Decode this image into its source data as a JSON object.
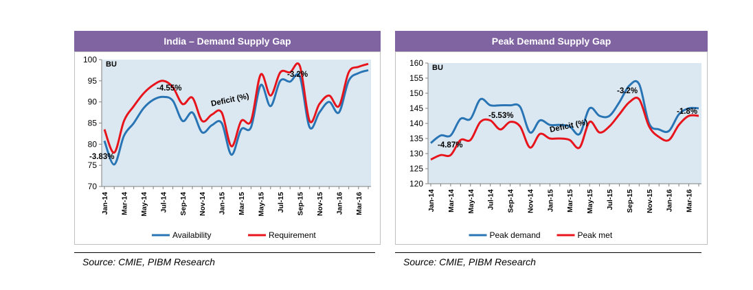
{
  "source_text": "Source: CMIE, PIBM Research",
  "colors": {
    "header_bg": "#8064a2",
    "plot_bg": "#dbe8f1",
    "blue": "#2874b4",
    "red": "#e8141c"
  },
  "chart_data": [
    {
      "type": "line",
      "title": "India – Demand Supply Gap",
      "ylabel": "BU",
      "ylim": [
        70,
        100
      ],
      "yticks": [
        70,
        75,
        80,
        85,
        90,
        95,
        100
      ],
      "x_tick_labels": [
        "Jan-14",
        "Mar-14",
        "May-14",
        "Jul-14",
        "Sep-14",
        "Nov-14",
        "Jan-15",
        "Mar-15",
        "May-15",
        "Jul-15",
        "Sep-15",
        "Nov-15",
        "Jan-16",
        "Mar-16"
      ],
      "x": [
        "Jan-14",
        "Feb-14",
        "Mar-14",
        "Apr-14",
        "May-14",
        "Jun-14",
        "Jul-14",
        "Aug-14",
        "Sep-14",
        "Oct-14",
        "Nov-14",
        "Dec-14",
        "Jan-15",
        "Feb-15",
        "Mar-15",
        "Apr-15",
        "May-15",
        "Jun-15",
        "Jul-15",
        "Aug-15",
        "Sep-15",
        "Oct-15",
        "Nov-15",
        "Dec-15",
        "Jan-16",
        "Feb-16",
        "Mar-16",
        "Apr-16"
      ],
      "series": [
        {
          "name": "Availability",
          "color": "#2874b4",
          "values": [
            80.8,
            75.2,
            82.0,
            85.0,
            88.5,
            90.5,
            91.2,
            90.3,
            85.5,
            87.5,
            82.8,
            84.5,
            85.0,
            77.5,
            83.5,
            84.0,
            94.0,
            89.0,
            95.0,
            94.8,
            96.0,
            84.0,
            87.5,
            90.0,
            87.5,
            95.0,
            96.8,
            97.5
          ]
        },
        {
          "name": "Requirement",
          "color": "#e8141c",
          "values": [
            83.5,
            78.0,
            85.5,
            89.0,
            92.0,
            94.0,
            95.0,
            93.5,
            89.5,
            91.0,
            85.5,
            87.0,
            87.5,
            79.5,
            85.5,
            85.5,
            96.5,
            91.5,
            97.0,
            97.0,
            98.5,
            85.5,
            89.5,
            91.5,
            89.0,
            97.0,
            98.3,
            99.0
          ]
        }
      ],
      "annotations": [
        "-3.83%",
        "-4.55%",
        "Deficit (%)",
        "-3.2%"
      ],
      "legend_position": "bottom"
    },
    {
      "type": "line",
      "title": "Peak Demand Supply Gap",
      "ylabel": "BU",
      "ylim": [
        120,
        160
      ],
      "yticks": [
        120,
        125,
        130,
        135,
        140,
        145,
        150,
        155,
        160
      ],
      "x_tick_labels": [
        "Jan-14",
        "Mar-14",
        "May-14",
        "Jul-14",
        "Sep-14",
        "Nov-14",
        "Jan-15",
        "Mar-15",
        "May-15",
        "Jul-15",
        "Sep-15",
        "Nov-15",
        "Jan-16",
        "Mar-16"
      ],
      "x": [
        "Jan-14",
        "Feb-14",
        "Mar-14",
        "Apr-14",
        "May-14",
        "Jun-14",
        "Jul-14",
        "Aug-14",
        "Sep-14",
        "Oct-14",
        "Nov-14",
        "Dec-14",
        "Jan-15",
        "Feb-15",
        "Mar-15",
        "Apr-15",
        "May-15",
        "Jun-15",
        "Jul-15",
        "Aug-15",
        "Sep-15",
        "Oct-15",
        "Nov-15",
        "Dec-15",
        "Jan-16",
        "Feb-16",
        "Mar-16",
        "Apr-16"
      ],
      "series": [
        {
          "name": "Peak demand",
          "color": "#2874b4",
          "values": [
            133.5,
            136.0,
            136.0,
            141.5,
            141.5,
            148.0,
            146.0,
            146.0,
            146.0,
            145.5,
            137.0,
            141.0,
            139.5,
            139.5,
            139.0,
            136.5,
            145.0,
            142.5,
            142.5,
            147.0,
            152.5,
            153.0,
            140.0,
            138.0,
            137.5,
            143.0,
            145.0,
            145.0
          ]
        },
        {
          "name": "Peak met",
          "color": "#e8141c",
          "values": [
            128.0,
            129.5,
            129.5,
            134.5,
            134.5,
            140.5,
            141.0,
            138.0,
            140.5,
            139.0,
            132.0,
            136.5,
            135.0,
            135.0,
            134.5,
            132.0,
            140.5,
            137.0,
            139.0,
            143.0,
            147.0,
            148.0,
            139.0,
            135.5,
            134.5,
            139.5,
            142.5,
            142.5
          ]
        }
      ],
      "annotations": [
        "-4.87%",
        "-5.53%",
        "Deficit (%)",
        "-3.2%",
        "-1.8%"
      ],
      "legend_position": "bottom"
    }
  ]
}
